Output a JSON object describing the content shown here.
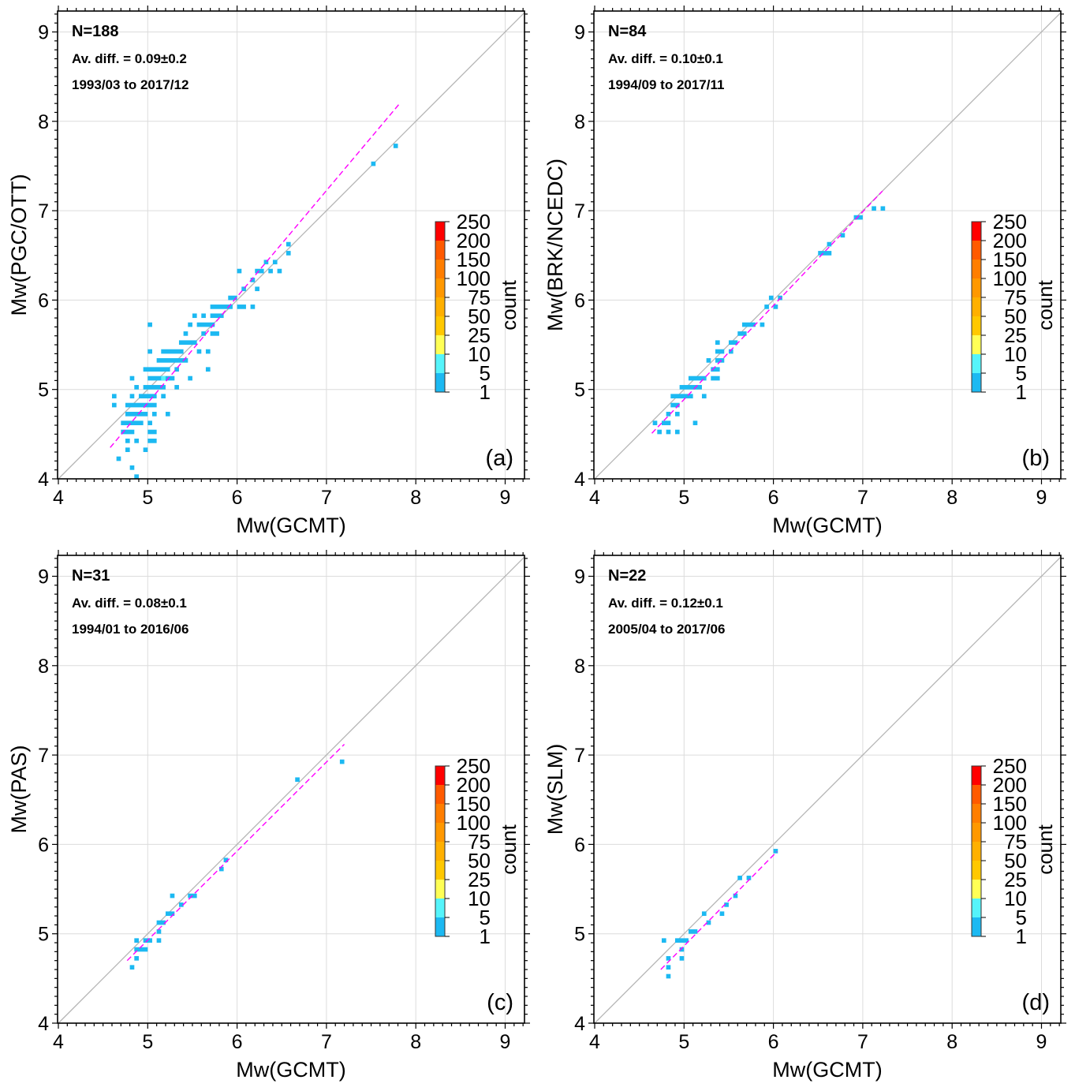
{
  "chart_data": [
    {
      "type": "heatmap",
      "panel_label": "(a)",
      "xlabel": "Mw(GCMT)",
      "ylabel": "Mw(PGC/OTT)",
      "xlim": [
        4,
        9.22
      ],
      "ylim": [
        4,
        9.22
      ],
      "xticks": [
        "4",
        "5",
        "6",
        "7",
        "8",
        "9"
      ],
      "yticks": [
        "4",
        "5",
        "6",
        "7",
        "8",
        "9"
      ],
      "annotations": {
        "n": "N=188",
        "avdiff": "Av. diff. = 0.09±0.2",
        "period": "1993/03 to 2017/12"
      },
      "regression": [
        [
          4.58,
          4.35
        ],
        [
          7.82,
          8.2
        ]
      ],
      "cells_1to5": [
        [
          7.75,
          7.8,
          7.7
        ],
        [
          7.5,
          7.55,
          7.5
        ],
        [
          6.55,
          6.6,
          6.6
        ],
        [
          6.55,
          6.6,
          6.5
        ],
        [
          6.3,
          6.35,
          6.4
        ],
        [
          6.4,
          6.45,
          6.4
        ],
        [
          6.0,
          6.05,
          6.3
        ],
        [
          6.2,
          6.3,
          6.3
        ],
        [
          6.35,
          6.4,
          6.3
        ],
        [
          6.45,
          6.5,
          6.3
        ],
        [
          6.15,
          6.2,
          6.2
        ],
        [
          6.05,
          6.1,
          6.1
        ],
        [
          6.2,
          6.25,
          6.1
        ],
        [
          5.9,
          6.0,
          6.0
        ],
        [
          5.7,
          5.95,
          5.9
        ],
        [
          6.0,
          6.1,
          5.9
        ],
        [
          6.15,
          6.2,
          5.9
        ],
        [
          5.5,
          5.55,
          5.8
        ],
        [
          5.6,
          5.65,
          5.8
        ],
        [
          5.7,
          5.85,
          5.8
        ],
        [
          5.0,
          5.05,
          5.7
        ],
        [
          5.45,
          5.5,
          5.7
        ],
        [
          5.55,
          5.75,
          5.7
        ],
        [
          5.4,
          5.45,
          5.6
        ],
        [
          5.6,
          5.65,
          5.6
        ],
        [
          5.7,
          5.8,
          5.6
        ],
        [
          5.35,
          5.55,
          5.5
        ],
        [
          5.0,
          5.05,
          5.4
        ],
        [
          5.15,
          5.4,
          5.4
        ],
        [
          5.55,
          5.6,
          5.4
        ],
        [
          5.65,
          5.7,
          5.4
        ],
        [
          5.1,
          5.45,
          5.3
        ],
        [
          4.95,
          5.25,
          5.2
        ],
        [
          5.3,
          5.35,
          5.2
        ],
        [
          5.65,
          5.7,
          5.2
        ],
        [
          4.8,
          4.85,
          5.1
        ],
        [
          5.0,
          5.3,
          5.1
        ],
        [
          5.45,
          5.5,
          5.1
        ],
        [
          4.85,
          4.9,
          5.0
        ],
        [
          4.95,
          5.2,
          5.0
        ],
        [
          5.3,
          5.35,
          5.0
        ],
        [
          4.6,
          4.65,
          4.9
        ],
        [
          4.8,
          4.85,
          4.9
        ],
        [
          4.9,
          5.1,
          4.9
        ],
        [
          5.15,
          5.2,
          4.9
        ],
        [
          4.6,
          4.65,
          4.8
        ],
        [
          4.75,
          5.1,
          4.8
        ],
        [
          4.75,
          5.0,
          4.7
        ],
        [
          5.05,
          5.1,
          4.7
        ],
        [
          5.2,
          5.25,
          4.7
        ],
        [
          4.7,
          4.95,
          4.6
        ],
        [
          5.0,
          5.05,
          4.6
        ],
        [
          4.7,
          4.85,
          4.5
        ],
        [
          5.0,
          5.1,
          4.5
        ],
        [
          4.75,
          4.8,
          4.4
        ],
        [
          4.85,
          4.9,
          4.4
        ],
        [
          5.0,
          5.1,
          4.4
        ],
        [
          4.75,
          4.8,
          4.3
        ],
        [
          4.95,
          5.0,
          4.3
        ],
        [
          4.65,
          4.7,
          4.2
        ],
        [
          4.8,
          4.85,
          4.1
        ],
        [
          4.85,
          4.9,
          4.0
        ]
      ],
      "cells_5to10": [
        [
          5.15,
          5.2,
          5.1
        ]
      ]
    },
    {
      "type": "heatmap",
      "panel_label": "(b)",
      "xlabel": "Mw(GCMT)",
      "ylabel": "Mw(BRK/NCEDC)",
      "xlim": [
        4,
        9.22
      ],
      "ylim": [
        4,
        9.22
      ],
      "xticks": [
        "4",
        "5",
        "6",
        "7",
        "8",
        "9"
      ],
      "yticks": [
        "4",
        "5",
        "6",
        "7",
        "8",
        "9"
      ],
      "annotations": {
        "n": "N=84",
        "avdiff": "Av. diff. = 0.10±0.1",
        "period": "1994/09 to 2017/11"
      },
      "regression": [
        [
          4.64,
          4.51
        ],
        [
          7.22,
          7.22
        ]
      ],
      "cells_1to5": [
        [
          7.1,
          7.15,
          7.0
        ],
        [
          7.2,
          7.25,
          7.0
        ],
        [
          6.9,
          7.0,
          6.9
        ],
        [
          6.75,
          6.8,
          6.7
        ],
        [
          6.6,
          6.65,
          6.6
        ],
        [
          6.5,
          6.65,
          6.5
        ],
        [
          5.95,
          6.0,
          6.0
        ],
        [
          6.05,
          6.1,
          6.0
        ],
        [
          5.9,
          5.95,
          5.9
        ],
        [
          6.0,
          6.05,
          5.9
        ],
        [
          5.65,
          5.8,
          5.7
        ],
        [
          5.85,
          5.9,
          5.7
        ],
        [
          5.6,
          5.7,
          5.6
        ],
        [
          5.35,
          5.4,
          5.5
        ],
        [
          5.5,
          5.6,
          5.5
        ],
        [
          5.35,
          5.45,
          5.4
        ],
        [
          5.5,
          5.55,
          5.4
        ],
        [
          5.25,
          5.3,
          5.3
        ],
        [
          5.35,
          5.45,
          5.3
        ],
        [
          5.3,
          5.4,
          5.2
        ],
        [
          5.05,
          5.25,
          5.1
        ],
        [
          5.3,
          5.4,
          5.1
        ],
        [
          4.95,
          5.2,
          5.0
        ],
        [
          4.85,
          5.1,
          4.9
        ],
        [
          5.2,
          5.25,
          4.9
        ],
        [
          4.85,
          4.95,
          4.8
        ],
        [
          4.8,
          4.85,
          4.7
        ],
        [
          4.9,
          4.95,
          4.7
        ],
        [
          4.65,
          4.7,
          4.6
        ],
        [
          4.75,
          4.85,
          4.6
        ],
        [
          5.1,
          5.15,
          4.6
        ],
        [
          4.7,
          4.75,
          4.5
        ],
        [
          4.8,
          4.85,
          4.5
        ],
        [
          4.9,
          4.95,
          4.5
        ]
      ],
      "cells_5to10": []
    },
    {
      "type": "heatmap",
      "panel_label": "(c)",
      "xlabel": "Mw(GCMT)",
      "ylabel": "Mw(PAS)",
      "xlim": [
        4,
        9.22
      ],
      "ylim": [
        4,
        9.22
      ],
      "xticks": [
        "4",
        "5",
        "6",
        "7",
        "8",
        "9"
      ],
      "yticks": [
        "4",
        "5",
        "6",
        "7",
        "8",
        "9"
      ],
      "annotations": {
        "n": "N=31",
        "avdiff": "Av. diff. = 0.08±0.1",
        "period": "1994/01 to 2016/06"
      },
      "regression": [
        [
          4.77,
          4.7
        ],
        [
          7.2,
          7.12
        ]
      ],
      "cells_1to5": [
        [
          7.15,
          7.2,
          6.9
        ],
        [
          6.65,
          6.7,
          6.7
        ],
        [
          5.85,
          5.9,
          5.8
        ],
        [
          5.8,
          5.85,
          5.7
        ],
        [
          5.25,
          5.3,
          5.4
        ],
        [
          5.45,
          5.55,
          5.4
        ],
        [
          5.35,
          5.4,
          5.3
        ],
        [
          5.2,
          5.3,
          5.2
        ],
        [
          5.1,
          5.2,
          5.1
        ],
        [
          5.1,
          5.15,
          5.0
        ],
        [
          4.85,
          4.9,
          4.9
        ],
        [
          4.95,
          5.05,
          4.9
        ],
        [
          5.1,
          5.15,
          4.9
        ],
        [
          4.85,
          5.0,
          4.8
        ],
        [
          4.85,
          4.9,
          4.7
        ],
        [
          4.8,
          4.85,
          4.6
        ]
      ],
      "cells_5to10": []
    },
    {
      "type": "heatmap",
      "panel_label": "(d)",
      "xlabel": "Mw(GCMT)",
      "ylabel": "Mw(SLM)",
      "xlim": [
        4,
        9.22
      ],
      "ylim": [
        4,
        9.22
      ],
      "xticks": [
        "4",
        "5",
        "6",
        "7",
        "8",
        "9"
      ],
      "yticks": [
        "4",
        "5",
        "6",
        "7",
        "8",
        "9"
      ],
      "annotations": {
        "n": "N=22",
        "avdiff": "Av. diff. = 0.12±0.1",
        "period": "2005/04 to 2017/06"
      },
      "regression": [
        [
          4.74,
          4.6
        ],
        [
          6.04,
          5.92
        ]
      ],
      "cells_1to5": [
        [
          6.0,
          6.05,
          5.9
        ],
        [
          5.6,
          5.65,
          5.6
        ],
        [
          5.7,
          5.75,
          5.6
        ],
        [
          5.55,
          5.6,
          5.4
        ],
        [
          5.45,
          5.5,
          5.3
        ],
        [
          5.2,
          5.25,
          5.2
        ],
        [
          5.4,
          5.45,
          5.2
        ],
        [
          5.25,
          5.3,
          5.1
        ],
        [
          5.05,
          5.15,
          5.0
        ],
        [
          4.75,
          4.8,
          4.9
        ],
        [
          4.9,
          5.05,
          4.9
        ],
        [
          4.95,
          5.0,
          4.8
        ],
        [
          4.8,
          4.85,
          4.7
        ],
        [
          4.95,
          5.0,
          4.7
        ],
        [
          4.8,
          4.85,
          4.6
        ],
        [
          4.8,
          4.85,
          4.5
        ]
      ],
      "cells_5to10": []
    }
  ],
  "colorbar": {
    "label": "count",
    "ticks": [
      "1",
      "5",
      "10",
      "25",
      "50",
      "75",
      "100",
      "150",
      "200",
      "250"
    ],
    "colors": [
      "#1cb9f2",
      "#55f4fb",
      "#ffff55",
      "#ffc800",
      "#ffb000",
      "#ff9800",
      "#ff7e00",
      "#ff5a00",
      "#ff0000"
    ]
  },
  "colors": {
    "cell_1to5": "#1cb9f2",
    "cell_5to10": "#55f4fb",
    "regression": "#ff00ff",
    "one_to_one": "#b4b4b4",
    "grid": "#dcdcdc"
  }
}
